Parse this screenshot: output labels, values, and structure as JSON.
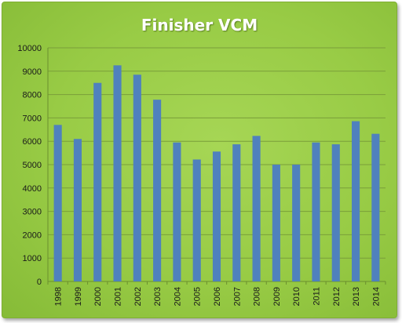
{
  "chart_data": {
    "type": "bar",
    "title": "Finisher VCM",
    "xlabel": "",
    "ylabel": "",
    "categories": [
      "1998",
      "1999",
      "2000",
      "2001",
      "2002",
      "2003",
      "2004",
      "2005",
      "2006",
      "2007",
      "2008",
      "2009",
      "2010",
      "2011",
      "2012",
      "2013",
      "2014"
    ],
    "values": [
      6700,
      6100,
      8500,
      9250,
      8850,
      7780,
      5950,
      5220,
      5560,
      5870,
      6230,
      5000,
      5000,
      5950,
      5870,
      6860,
      6320
    ],
    "ylim": [
      0,
      10000
    ],
    "yticks": [
      0,
      1000,
      2000,
      3000,
      4000,
      5000,
      6000,
      7000,
      8000,
      9000,
      10000
    ],
    "grid": true,
    "legend": "none",
    "colors": {
      "bar": "#4f81bd",
      "background": "#9bcd4b",
      "gridline": "#7a9e3a",
      "text": "#1a1a1a",
      "title": "#ffffff"
    }
  }
}
